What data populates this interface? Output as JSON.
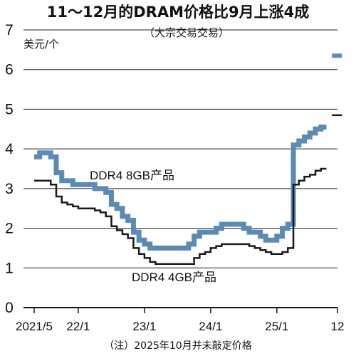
{
  "chart_data": {
    "type": "line",
    "title": "11～12月的DRAM价格比9月上涨4成",
    "subtitle": "（大宗交易交易）",
    "ylabel": "美元/个",
    "ylim": [
      0,
      7
    ],
    "yticks": [
      0,
      1,
      2,
      3,
      4,
      5,
      6,
      7
    ],
    "xlim": [
      0,
      55
    ],
    "xticks": [
      {
        "label": "2021/5",
        "x": 0
      },
      {
        "label": "22/1",
        "x": 8
      },
      {
        "label": "23/1",
        "x": 20
      },
      {
        "label": "24/1",
        "x": 32
      },
      {
        "label": "25/1",
        "x": 44
      },
      {
        "label": "12",
        "x": 55
      }
    ],
    "grid": "horizontal",
    "note": "（注）2025年10月并未敲定价格",
    "colors": {
      "ddr4_8gb": "#5b8bb5",
      "ddr4_4gb": "#1a1a1a"
    },
    "series": [
      {
        "name": "DDR4 8GB产品",
        "x": [
          0,
          1,
          2,
          3,
          4,
          5,
          6,
          7,
          8,
          9,
          10,
          11,
          12,
          13,
          14,
          15,
          16,
          17,
          18,
          19,
          20,
          21,
          22,
          23,
          24,
          25,
          26,
          27,
          28,
          29,
          30,
          31,
          32,
          33,
          34,
          35,
          36,
          37,
          38,
          39,
          40,
          41,
          42,
          43,
          44,
          45,
          46,
          47,
          48,
          49,
          50,
          51,
          52
        ],
        "values": [
          3.8,
          3.9,
          3.9,
          3.8,
          3.4,
          3.2,
          3.2,
          3.1,
          3.1,
          3.1,
          3.1,
          3.0,
          3.0,
          2.9,
          2.6,
          2.5,
          2.3,
          2.2,
          1.9,
          1.7,
          1.6,
          1.5,
          1.5,
          1.5,
          1.5,
          1.5,
          1.5,
          1.5,
          1.6,
          1.8,
          1.9,
          1.9,
          1.9,
          2.0,
          2.1,
          2.1,
          2.1,
          2.1,
          2.0,
          1.9,
          1.9,
          1.8,
          1.7,
          1.7,
          1.8,
          2.0,
          2.1,
          4.1,
          4.2,
          4.3,
          4.4,
          4.5,
          4.55
        ]
      },
      {
        "name": "DDR4 4GB产品",
        "x": [
          0,
          1,
          2,
          3,
          4,
          5,
          6,
          7,
          8,
          9,
          10,
          11,
          12,
          13,
          14,
          15,
          16,
          17,
          18,
          19,
          20,
          21,
          22,
          23,
          24,
          25,
          26,
          27,
          28,
          29,
          30,
          31,
          32,
          33,
          34,
          35,
          36,
          37,
          38,
          39,
          40,
          41,
          42,
          43,
          44,
          45,
          46,
          47,
          48,
          49,
          50,
          51,
          52
        ],
        "values": [
          3.2,
          3.2,
          3.2,
          3.1,
          2.8,
          2.65,
          2.6,
          2.55,
          2.5,
          2.5,
          2.5,
          2.45,
          2.4,
          2.3,
          2.05,
          1.95,
          1.85,
          1.75,
          1.5,
          1.35,
          1.25,
          1.15,
          1.1,
          1.1,
          1.1,
          1.1,
          1.1,
          1.1,
          1.1,
          1.25,
          1.35,
          1.4,
          1.5,
          1.55,
          1.6,
          1.6,
          1.6,
          1.6,
          1.6,
          1.55,
          1.5,
          1.45,
          1.4,
          1.35,
          1.35,
          1.4,
          1.5,
          3.1,
          3.2,
          3.3,
          3.35,
          3.45,
          3.5
        ]
      }
    ],
    "forecast": [
      {
        "series": "DDR4 8GB产品",
        "x": 54,
        "value": 6.35
      },
      {
        "series": "DDR4 4GB产品",
        "x": 54,
        "value": 4.85
      }
    ]
  }
}
